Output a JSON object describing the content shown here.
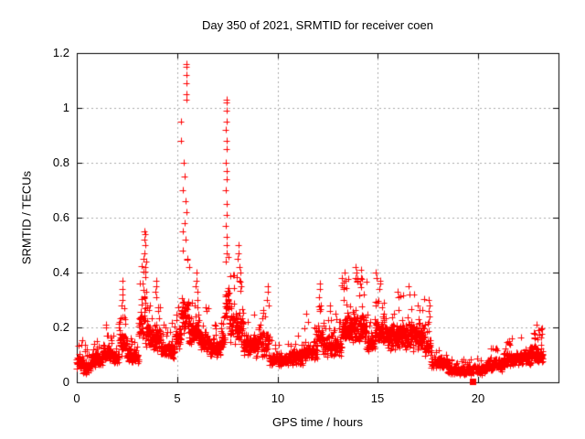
{
  "chart_data": {
    "type": "scatter",
    "title": "Day 350 of 2021, SRMTID for receiver coen",
    "xlabel": "GPS time / hours",
    "ylabel": "SRMTID / TECUs",
    "xlim": [
      0,
      24
    ],
    "ylim": [
      0,
      1.2
    ],
    "xticks": {
      "values": [
        0,
        5,
        10,
        15,
        20
      ],
      "labels": [
        "0",
        "5",
        "10",
        "15",
        "20"
      ]
    },
    "yticks": {
      "values": [
        0,
        0.2,
        0.4,
        0.6,
        0.8,
        1,
        1.2
      ],
      "labels": [
        "0",
        "0.2",
        "0.4",
        "0.6",
        "0.8",
        "1",
        "1.2"
      ]
    },
    "grid": true,
    "legend": "none",
    "marker": {
      "shape": "plus",
      "size": 7,
      "color": "#ff0000"
    },
    "colors": {
      "points": "#ff0000",
      "grid": "#aaaaaa",
      "border": "#000000",
      "text": "#000000",
      "background": "#ffffff"
    },
    "data_start_hour": 0.0,
    "data_end_hour": 23.25,
    "envelope_bins_format": [
      "hour_start",
      "hour_end",
      "y_min",
      "y_max",
      "points_per_hour"
    ],
    "envelope_bins": [
      [
        0.0,
        0.3,
        0.04,
        0.16,
        120
      ],
      [
        0.3,
        0.7,
        0.02,
        0.14,
        110
      ],
      [
        0.7,
        1.3,
        0.05,
        0.16,
        120
      ],
      [
        1.3,
        1.6,
        0.07,
        0.2,
        120
      ],
      [
        1.6,
        2.1,
        0.06,
        0.17,
        120
      ],
      [
        2.1,
        2.5,
        0.08,
        0.28,
        120
      ],
      [
        2.5,
        3.1,
        0.06,
        0.18,
        120
      ],
      [
        3.1,
        3.6,
        0.1,
        0.45,
        130
      ],
      [
        3.6,
        4.2,
        0.1,
        0.3,
        130
      ],
      [
        4.2,
        4.9,
        0.08,
        0.22,
        120
      ],
      [
        4.9,
        5.2,
        0.1,
        0.28,
        120
      ],
      [
        5.2,
        5.6,
        0.15,
        0.48,
        130
      ],
      [
        5.6,
        6.1,
        0.12,
        0.34,
        130
      ],
      [
        6.1,
        6.6,
        0.1,
        0.28,
        120
      ],
      [
        6.6,
        7.2,
        0.08,
        0.22,
        115
      ],
      [
        7.2,
        7.4,
        0.1,
        0.3,
        120
      ],
      [
        7.4,
        7.6,
        0.2,
        0.48,
        130
      ],
      [
        7.6,
        8.3,
        0.12,
        0.42,
        130
      ],
      [
        8.3,
        9.0,
        0.08,
        0.25,
        120
      ],
      [
        9.0,
        9.6,
        0.08,
        0.28,
        115
      ],
      [
        9.6,
        10.6,
        0.05,
        0.16,
        110
      ],
      [
        10.6,
        11.3,
        0.05,
        0.19,
        110
      ],
      [
        11.3,
        11.7,
        0.06,
        0.23,
        110
      ],
      [
        11.7,
        12.0,
        0.07,
        0.2,
        110
      ],
      [
        12.0,
        12.25,
        0.1,
        0.32,
        120
      ],
      [
        12.25,
        13.2,
        0.08,
        0.25,
        120
      ],
      [
        13.2,
        14.45,
        0.12,
        0.38,
        140
      ],
      [
        14.45,
        14.85,
        0.1,
        0.25,
        120
      ],
      [
        14.85,
        15.0,
        0.1,
        0.34,
        120
      ],
      [
        15.0,
        15.4,
        0.12,
        0.34,
        130
      ],
      [
        15.4,
        16.3,
        0.1,
        0.32,
        140
      ],
      [
        16.3,
        17.3,
        0.1,
        0.32,
        140
      ],
      [
        17.3,
        17.65,
        0.08,
        0.25,
        110
      ],
      [
        17.65,
        18.5,
        0.04,
        0.15,
        90
      ],
      [
        18.5,
        19.4,
        0.02,
        0.1,
        95
      ],
      [
        19.4,
        20.4,
        0.02,
        0.1,
        85
      ],
      [
        20.4,
        21.3,
        0.03,
        0.13,
        110
      ],
      [
        21.3,
        22.3,
        0.05,
        0.17,
        120
      ],
      [
        22.3,
        23.25,
        0.05,
        0.2,
        130
      ]
    ],
    "peak_points_format": [
      "hour",
      "srmtid_tecus"
    ],
    "peak_points": [
      [
        1.45,
        0.21
      ],
      [
        1.48,
        0.2
      ],
      [
        2.27,
        0.37
      ],
      [
        2.28,
        0.34
      ],
      [
        2.26,
        0.32
      ],
      [
        2.29,
        0.3
      ],
      [
        2.25,
        0.28
      ],
      [
        3.38,
        0.55
      ],
      [
        3.41,
        0.54
      ],
      [
        3.36,
        0.52
      ],
      [
        3.43,
        0.5
      ],
      [
        3.38,
        0.47
      ],
      [
        3.34,
        0.45
      ],
      [
        3.45,
        0.44
      ],
      [
        3.4,
        0.42
      ],
      [
        3.95,
        0.37
      ],
      [
        3.97,
        0.35
      ],
      [
        3.93,
        0.33
      ],
      [
        3.96,
        0.31
      ],
      [
        5.47,
        1.16
      ],
      [
        5.48,
        1.15
      ],
      [
        5.46,
        1.12
      ],
      [
        5.48,
        1.09
      ],
      [
        5.47,
        1.05
      ],
      [
        5.48,
        1.03
      ],
      [
        5.2,
        0.95
      ],
      [
        5.21,
        0.88
      ],
      [
        5.32,
        0.8
      ],
      [
        5.38,
        0.75
      ],
      [
        5.28,
        0.7
      ],
      [
        5.42,
        0.66
      ],
      [
        5.47,
        0.62
      ],
      [
        5.36,
        0.58
      ],
      [
        5.3,
        0.55
      ],
      [
        5.44,
        0.52
      ],
      [
        5.26,
        0.48
      ],
      [
        5.52,
        0.45
      ],
      [
        5.58,
        0.42
      ],
      [
        5.95,
        0.4
      ],
      [
        5.97,
        0.37
      ],
      [
        5.92,
        0.35
      ],
      [
        6.0,
        0.33
      ],
      [
        7.45,
        1.03
      ],
      [
        7.47,
        1.02
      ],
      [
        7.45,
        0.99
      ],
      [
        7.46,
        0.95
      ],
      [
        7.44,
        0.92
      ],
      [
        7.46,
        0.88
      ],
      [
        7.45,
        0.85
      ],
      [
        7.44,
        0.8
      ],
      [
        7.46,
        0.77
      ],
      [
        7.45,
        0.74
      ],
      [
        7.44,
        0.7
      ],
      [
        7.46,
        0.65
      ],
      [
        7.45,
        0.61
      ],
      [
        7.44,
        0.57
      ],
      [
        7.46,
        0.53
      ],
      [
        7.45,
        0.5
      ],
      [
        7.47,
        0.47
      ],
      [
        7.43,
        0.44
      ],
      [
        8.05,
        0.5
      ],
      [
        8.08,
        0.47
      ],
      [
        8.02,
        0.45
      ],
      [
        8.11,
        0.42
      ],
      [
        8.15,
        0.4
      ],
      [
        8.12,
        0.37
      ],
      [
        8.18,
        0.35
      ],
      [
        9.5,
        0.35
      ],
      [
        9.53,
        0.33
      ],
      [
        9.47,
        0.3
      ],
      [
        9.55,
        0.28
      ],
      [
        11.45,
        0.25
      ],
      [
        11.5,
        0.22
      ],
      [
        12.1,
        0.36
      ],
      [
        12.12,
        0.34
      ],
      [
        12.08,
        0.31
      ],
      [
        12.14,
        0.28
      ],
      [
        12.1,
        0.26
      ],
      [
        12.6,
        0.28
      ],
      [
        12.63,
        0.26
      ],
      [
        13.35,
        0.4
      ],
      [
        13.38,
        0.37
      ],
      [
        13.32,
        0.34
      ],
      [
        13.9,
        0.42
      ],
      [
        13.93,
        0.4
      ],
      [
        13.87,
        0.38
      ],
      [
        14.15,
        0.41
      ],
      [
        14.18,
        0.38
      ],
      [
        14.12,
        0.36
      ],
      [
        14.9,
        0.4
      ],
      [
        14.93,
        0.38
      ],
      [
        15.1,
        0.37
      ],
      [
        15.13,
        0.36
      ],
      [
        15.07,
        0.34
      ],
      [
        16.0,
        0.33
      ],
      [
        16.03,
        0.31
      ],
      [
        16.55,
        0.35
      ],
      [
        16.58,
        0.32
      ],
      [
        17.55,
        0.3
      ],
      [
        17.57,
        0.28
      ],
      [
        17.53,
        0.26
      ],
      [
        17.56,
        0.24
      ],
      [
        17.54,
        0.22
      ],
      [
        22.9,
        0.21
      ],
      [
        23.0,
        0.19
      ]
    ],
    "special_points": [
      {
        "x": 19.72,
        "y": 0.004,
        "marker": "filled-square",
        "color": "#ff0000"
      }
    ]
  }
}
